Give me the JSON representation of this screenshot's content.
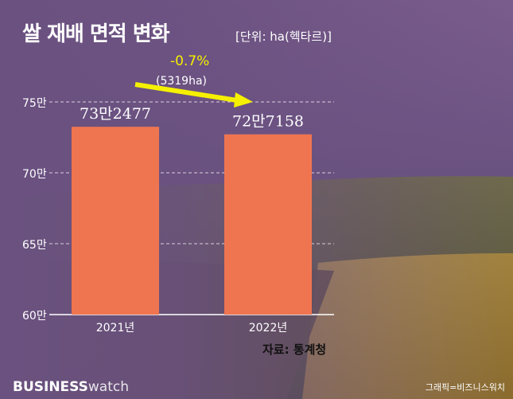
{
  "title": "쌀 재배 면적 변화",
  "unit_note": "[단위: ha(헥타르)]",
  "source": "자료: 통계청",
  "brand": {
    "bold": "BUSINESS",
    "light": "watch"
  },
  "credit": "그래픽=비즈니스워치",
  "change": {
    "percent": "-0.7%",
    "amount": "(5319ha)"
  },
  "colors": {
    "bar": "#ef7550",
    "arrow": "#f5f000",
    "grid": "#d8d0dc"
  },
  "chart_data": {
    "type": "bar",
    "categories": [
      "2021년",
      "2022년"
    ],
    "values": [
      732477,
      727158
    ],
    "value_labels": [
      "73만2477",
      "72만7158"
    ],
    "ylim": [
      600000,
      750000
    ],
    "yticks": [
      600000,
      650000,
      700000,
      750000
    ],
    "ytick_labels": [
      "60만",
      "65만",
      "70만",
      "75만"
    ],
    "grid": true,
    "legend": false
  }
}
